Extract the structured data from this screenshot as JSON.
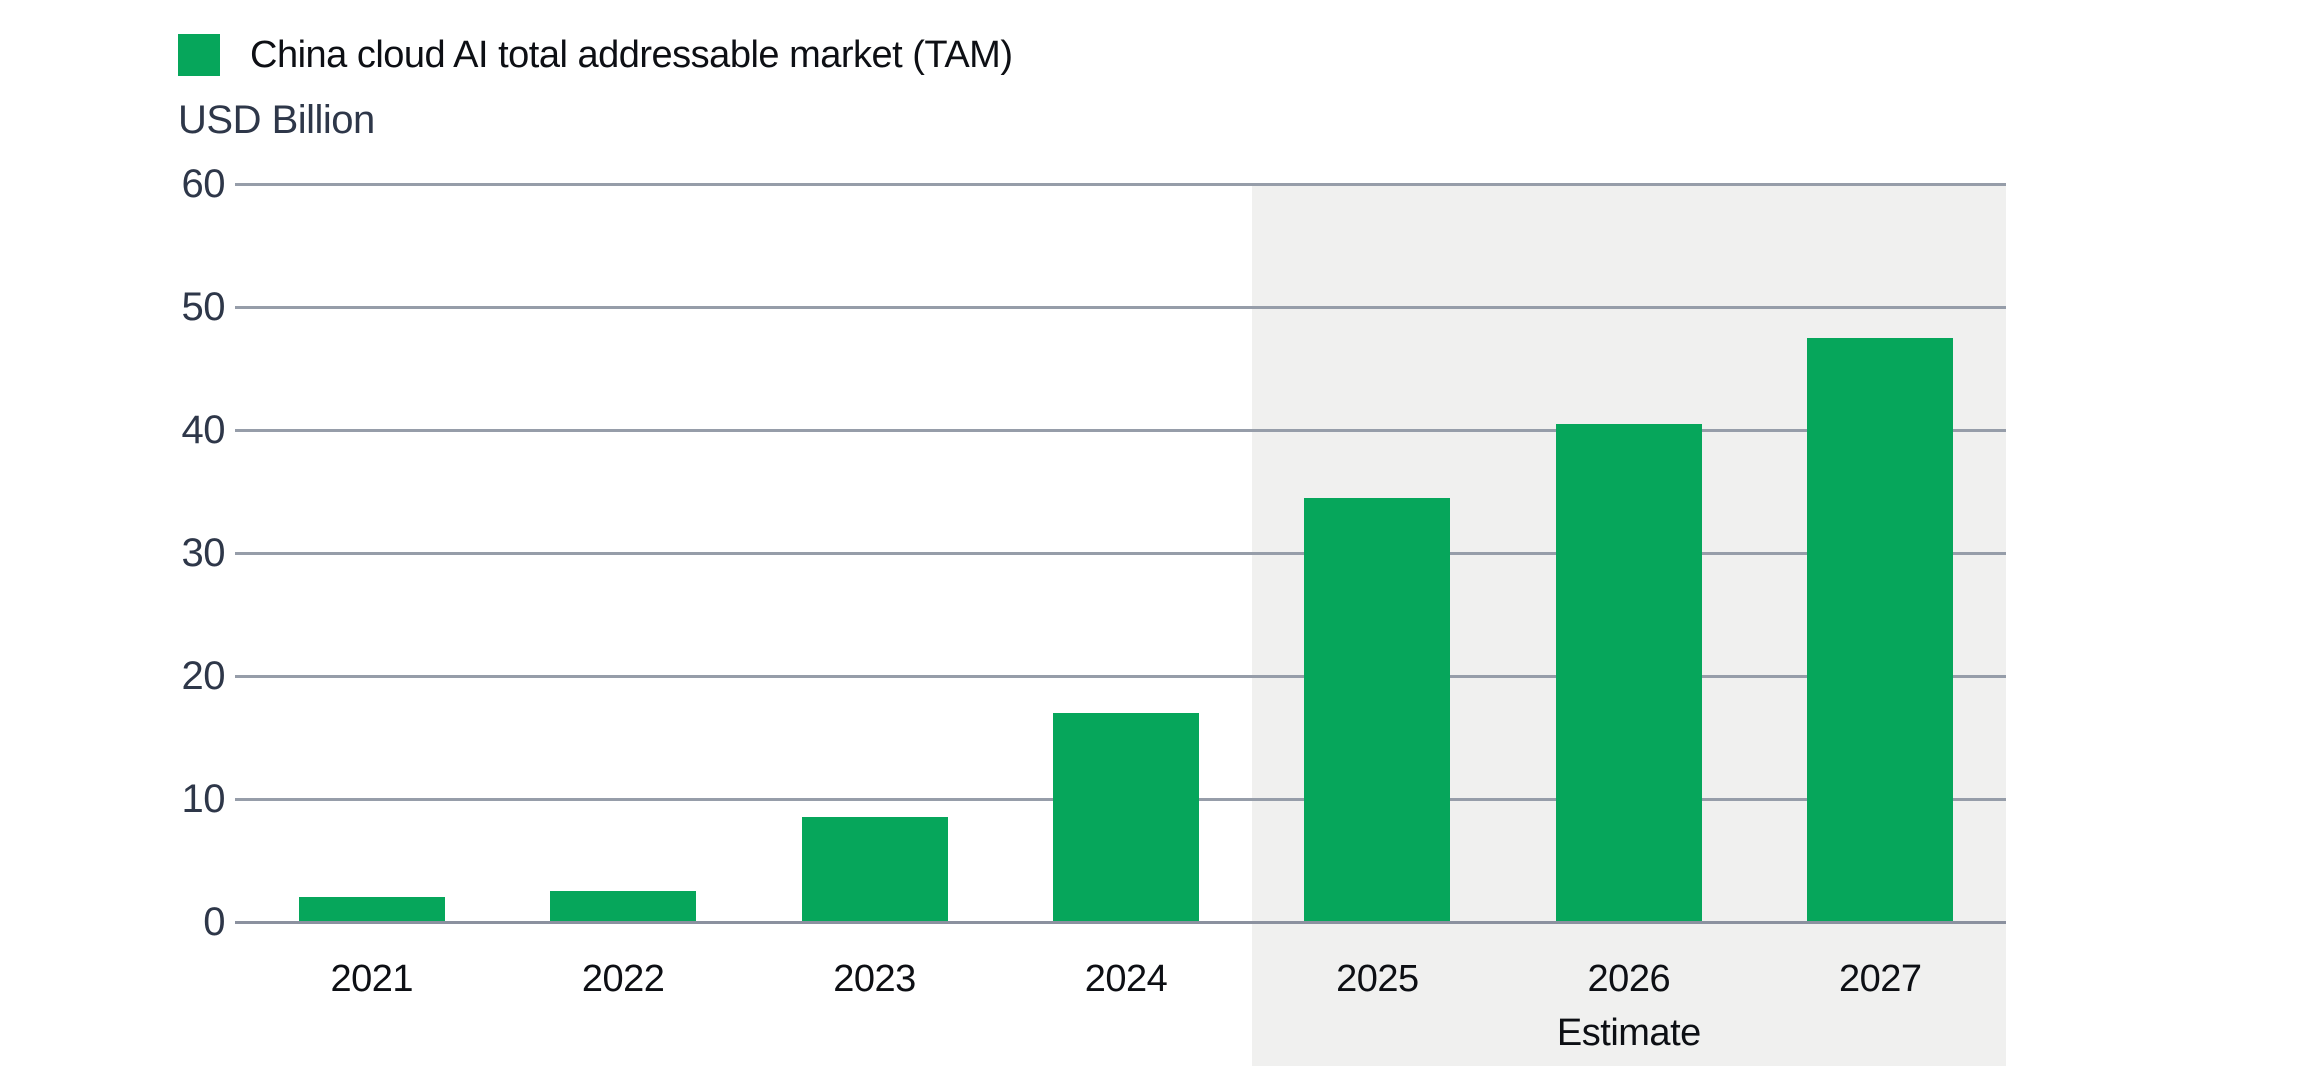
{
  "legend": {
    "label": "China cloud AI total addressable market (TAM)"
  },
  "y_axis_title": "USD Billion",
  "chart_data": {
    "type": "bar",
    "title": "China cloud AI total addressable market (TAM)",
    "xlabel": "",
    "ylabel": "USD Billion",
    "categories": [
      "2021",
      "2022",
      "2023",
      "2024",
      "2025",
      "2026",
      "2027"
    ],
    "values": [
      2,
      2.5,
      8.5,
      17,
      34.5,
      40.5,
      47.5
    ],
    "ylim": [
      0,
      60
    ],
    "yticks": [
      0,
      10,
      20,
      30,
      40,
      50,
      60
    ],
    "grid": true,
    "legend_position": "top-left",
    "estimate_band": {
      "label": "Estimate",
      "start_category": "2025",
      "end_category": "2027"
    }
  },
  "colors": {
    "bar": "#06a65b",
    "estimate_band": "#f0f0ef",
    "gridline": "#969da9",
    "axis_line": "#8b919f",
    "tick_text": "#2e3749",
    "label_text": "#0d0f14"
  }
}
